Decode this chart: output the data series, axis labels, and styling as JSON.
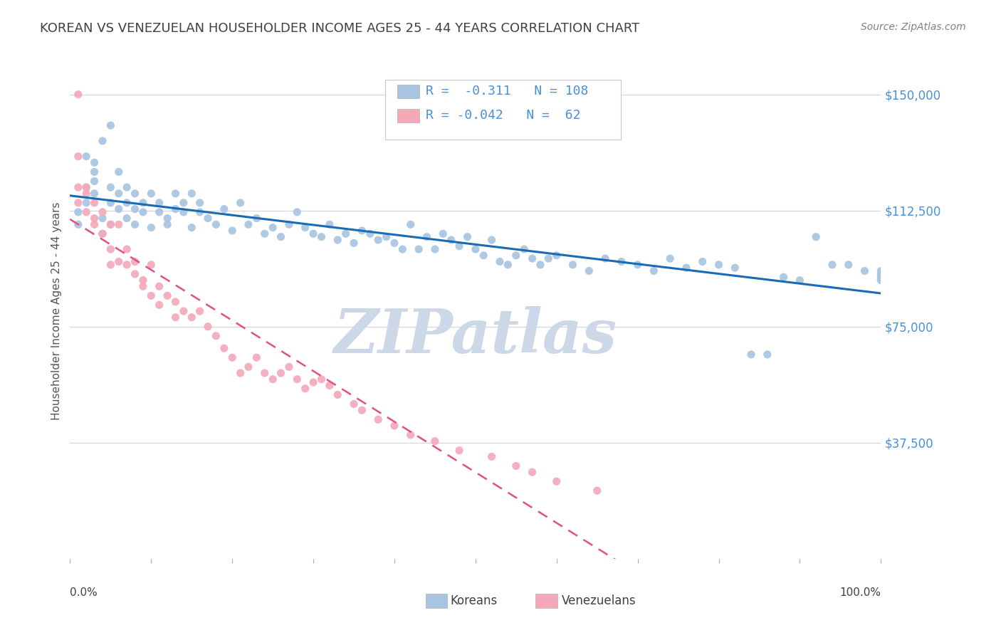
{
  "title": "KOREAN VS VENEZUELAN HOUSEHOLDER INCOME AGES 25 - 44 YEARS CORRELATION CHART",
  "source": "Source: ZipAtlas.com",
  "ylabel": "Householder Income Ages 25 - 44 years",
  "ytick_labels": [
    "$150,000",
    "$112,500",
    "$75,000",
    "$37,500"
  ],
  "ytick_values": [
    150000,
    112500,
    75000,
    37500
  ],
  "ymin": 0,
  "ymax": 160000,
  "xmin": 0,
  "xmax": 100,
  "korean_R": "-0.311",
  "korean_N": 108,
  "venezuelan_R": "-0.042",
  "venezuelan_N": 62,
  "korean_color": "#a8c4e0",
  "korean_line_color": "#1a6bb5",
  "venezuelan_color": "#f4a8b8",
  "venezuelan_line_color": "#e05080",
  "background_color": "#ffffff",
  "grid_color": "#d0d0d0",
  "title_color": "#404040",
  "source_color": "#808080",
  "legend_text_color": "#4a90d9",
  "watermark_color": "#ccd8e8",
  "watermark_text": "ZIPatlas",
  "korean_scatter_x": [
    1,
    1,
    2,
    2,
    2,
    3,
    3,
    3,
    3,
    4,
    4,
    4,
    5,
    5,
    5,
    5,
    6,
    6,
    6,
    7,
    7,
    7,
    8,
    8,
    8,
    9,
    9,
    10,
    10,
    11,
    11,
    12,
    12,
    13,
    13,
    14,
    14,
    15,
    15,
    16,
    16,
    17,
    18,
    19,
    20,
    21,
    22,
    23,
    24,
    25,
    26,
    27,
    28,
    29,
    30,
    31,
    32,
    33,
    34,
    35,
    36,
    37,
    38,
    39,
    40,
    41,
    42,
    43,
    44,
    45,
    46,
    47,
    48,
    49,
    50,
    51,
    52,
    53,
    54,
    55,
    56,
    57,
    58,
    59,
    60,
    62,
    64,
    66,
    68,
    70,
    72,
    74,
    76,
    78,
    80,
    82,
    84,
    86,
    88,
    90,
    92,
    94,
    96,
    98,
    100,
    100,
    100,
    100
  ],
  "korean_scatter_y": [
    112000,
    108000,
    120000,
    115000,
    130000,
    125000,
    118000,
    122000,
    128000,
    110000,
    105000,
    135000,
    140000,
    108000,
    115000,
    120000,
    113000,
    118000,
    125000,
    110000,
    115000,
    120000,
    108000,
    113000,
    118000,
    115000,
    112000,
    107000,
    118000,
    112000,
    115000,
    110000,
    108000,
    113000,
    118000,
    115000,
    112000,
    107000,
    118000,
    112000,
    115000,
    110000,
    108000,
    113000,
    106000,
    115000,
    108000,
    110000,
    105000,
    107000,
    104000,
    108000,
    112000,
    107000,
    105000,
    104000,
    108000,
    103000,
    105000,
    102000,
    106000,
    105000,
    103000,
    104000,
    102000,
    100000,
    108000,
    100000,
    104000,
    100000,
    105000,
    103000,
    101000,
    104000,
    100000,
    98000,
    103000,
    96000,
    95000,
    98000,
    100000,
    97000,
    95000,
    97000,
    98000,
    95000,
    93000,
    97000,
    96000,
    95000,
    93000,
    97000,
    94000,
    96000,
    95000,
    94000,
    66000,
    66000,
    91000,
    90000,
    104000,
    95000,
    95000,
    93000,
    92000,
    90000,
    93000,
    91000
  ],
  "venezuelan_scatter_x": [
    1,
    1,
    1,
    1,
    2,
    2,
    2,
    3,
    3,
    3,
    4,
    4,
    5,
    5,
    5,
    6,
    6,
    7,
    7,
    8,
    8,
    9,
    9,
    10,
    10,
    11,
    11,
    12,
    13,
    13,
    14,
    15,
    16,
    17,
    18,
    19,
    20,
    21,
    22,
    23,
    24,
    25,
    26,
    27,
    28,
    29,
    30,
    31,
    32,
    33,
    35,
    36,
    38,
    40,
    42,
    45,
    48,
    52,
    55,
    57,
    60,
    65
  ],
  "venezuelan_scatter_y": [
    150000,
    130000,
    120000,
    115000,
    120000,
    118000,
    112000,
    110000,
    115000,
    108000,
    112000,
    105000,
    108000,
    100000,
    95000,
    96000,
    108000,
    100000,
    95000,
    96000,
    92000,
    90000,
    88000,
    95000,
    85000,
    88000,
    82000,
    85000,
    83000,
    78000,
    80000,
    78000,
    80000,
    75000,
    72000,
    68000,
    65000,
    60000,
    62000,
    65000,
    60000,
    58000,
    60000,
    62000,
    58000,
    55000,
    57000,
    58000,
    56000,
    53000,
    50000,
    48000,
    45000,
    43000,
    40000,
    38000,
    35000,
    33000,
    30000,
    28000,
    25000,
    22000
  ]
}
